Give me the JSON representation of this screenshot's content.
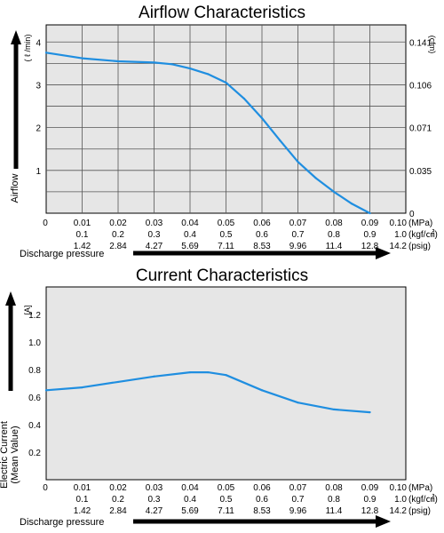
{
  "chart_data": [
    {
      "type": "line",
      "title": "Airflow Characteristics",
      "ylabel": "Airflow",
      "yunit": "( ℓ /min)",
      "y2unit": "(cfm)",
      "xlabel": "Discharge pressure",
      "xlim": [
        0,
        0.1
      ],
      "ylim": [
        0,
        4.4
      ],
      "yticks": [
        "1",
        "2",
        "3",
        "4"
      ],
      "y2ticks": [
        "0.141",
        "0.106",
        "0.071",
        "0.035",
        "0"
      ],
      "grid": true,
      "xtick_rows": [
        {
          "unit": "(MPa)",
          "labels": [
            "0",
            "0.01",
            "0.02",
            "0.03",
            "0.04",
            "0.05",
            "0.06",
            "0.07",
            "0.08",
            "0.09",
            "0.10"
          ]
        },
        {
          "unit": "(kgf/㎠)",
          "labels": [
            "",
            "0.1",
            "0.2",
            "0.3",
            "0.4",
            "0.5",
            "0.6",
            "0.7",
            "0.8",
            "0.9",
            "1.0"
          ]
        },
        {
          "unit": "(psig)",
          "labels": [
            "",
            "1.42",
            "2.84",
            "4.27",
            "5.69",
            "7.11",
            "8.53",
            "9.96",
            "11.4",
            "12.8",
            "14.2"
          ]
        }
      ],
      "series": [
        {
          "color": "#1f8ee0",
          "x": [
            0,
            0.01,
            0.02,
            0.03,
            0.035,
            0.04,
            0.045,
            0.05,
            0.055,
            0.06,
            0.065,
            0.07,
            0.075,
            0.08,
            0.085,
            0.09
          ],
          "y": [
            3.75,
            3.62,
            3.55,
            3.52,
            3.48,
            3.38,
            3.25,
            3.05,
            2.68,
            2.22,
            1.7,
            1.2,
            0.82,
            0.5,
            0.22,
            0.0
          ]
        }
      ]
    },
    {
      "type": "line",
      "title": "Current Characteristics",
      "ylabel": "Electric Current\n(Mean Value)",
      "yunit": "[A]",
      "xlabel": "Discharge pressure",
      "xlim": [
        0,
        0.1
      ],
      "ylim": [
        0,
        1.4
      ],
      "yticks": [
        "0.2",
        "0.4",
        "0.6",
        "0.8",
        "1.0",
        "1.2"
      ],
      "grid": false,
      "xtick_rows": [
        {
          "unit": "(MPa)",
          "labels": [
            "0",
            "0.01",
            "0.02",
            "0.03",
            "0.04",
            "0.05",
            "0.06",
            "0.07",
            "0.08",
            "0.09",
            "0.10"
          ]
        },
        {
          "unit": "(kgf/㎠)",
          "labels": [
            "",
            "0.1",
            "0.2",
            "0.3",
            "0.4",
            "0.5",
            "0.6",
            "0.7",
            "0.8",
            "0.9",
            "1.0"
          ]
        },
        {
          "unit": "(psig)",
          "labels": [
            "",
            "1.42",
            "2.84",
            "4.27",
            "5.69",
            "7.11",
            "8.53",
            "9.96",
            "11.4",
            "12.8",
            "14.2"
          ]
        }
      ],
      "series": [
        {
          "color": "#1f8ee0",
          "x": [
            0,
            0.01,
            0.02,
            0.03,
            0.04,
            0.045,
            0.05,
            0.06,
            0.07,
            0.08,
            0.09
          ],
          "y": [
            0.65,
            0.67,
            0.71,
            0.75,
            0.78,
            0.78,
            0.76,
            0.65,
            0.56,
            0.51,
            0.49
          ]
        }
      ]
    }
  ]
}
